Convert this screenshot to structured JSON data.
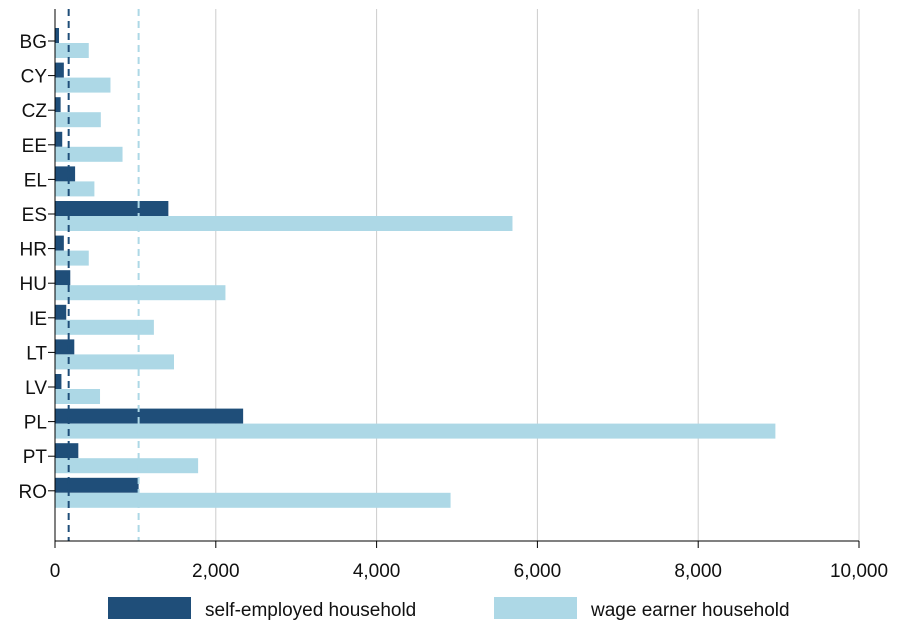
{
  "chart_data": {
    "type": "bar",
    "orientation": "horizontal",
    "categories": [
      "BG",
      "CY",
      "CZ",
      "EE",
      "EL",
      "ES",
      "HR",
      "HU",
      "IE",
      "LT",
      "LV",
      "PL",
      "PT",
      "RO"
    ],
    "series": [
      {
        "name": "self-employed household",
        "color": "#1f4e79",
        "values": [
          50,
          110,
          70,
          90,
          250,
          1410,
          110,
          190,
          140,
          240,
          80,
          2340,
          290,
          1040
        ]
      },
      {
        "name": "wage earner household",
        "color": "#add8e6",
        "values": [
          420,
          690,
          570,
          840,
          490,
          5690,
          420,
          2120,
          1230,
          1480,
          560,
          8960,
          1780,
          4920
        ]
      }
    ],
    "reference_lines": [
      {
        "value": 170,
        "color": "#1f4e79",
        "style": "dashed"
      },
      {
        "value": 1040,
        "color": "#add8e6",
        "style": "dashed"
      }
    ],
    "xlim": [
      0,
      10000
    ],
    "xticks": [
      0,
      2000,
      4000,
      6000,
      8000,
      10000
    ],
    "xtick_labels": [
      "0",
      "2,000",
      "4,000",
      "6,000",
      "8,000",
      "10,000"
    ],
    "grid": "vertical",
    "legend_position": "bottom",
    "title": "",
    "xlabel": "",
    "ylabel": ""
  }
}
